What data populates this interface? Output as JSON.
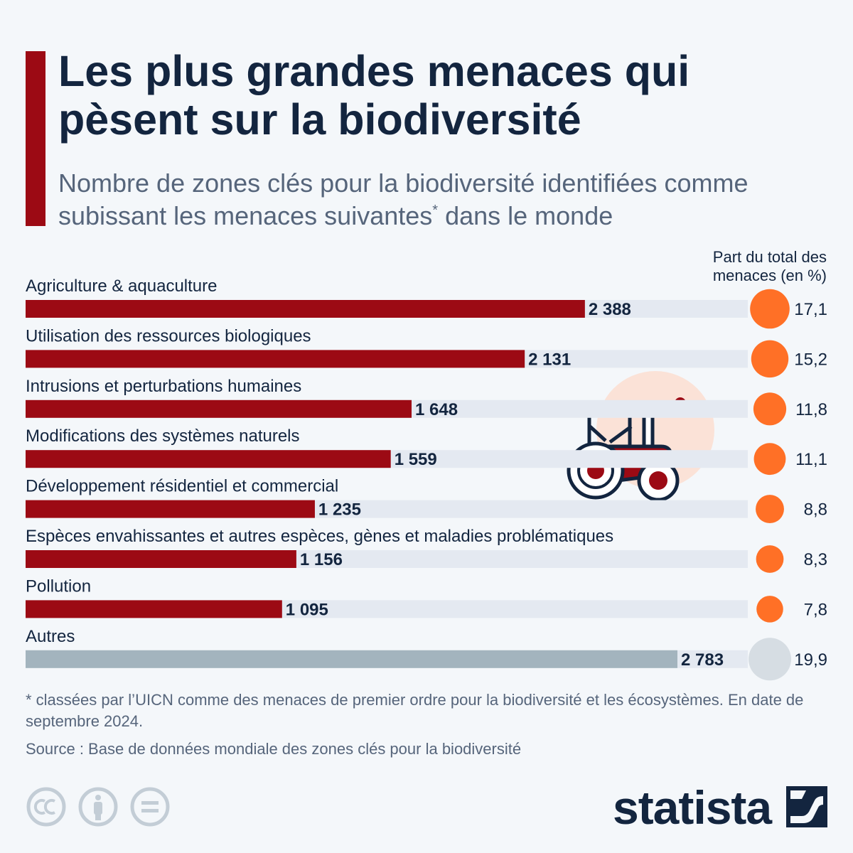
{
  "title": "Les plus grandes menaces qui pèsent sur la biodiversité",
  "subtitle_main": "Nombre de zones clés pour la biodiversité identifiées comme subissant les menaces suivantes",
  "subtitle_mark": "*",
  "subtitle_end": " dans le monde",
  "share_header": "Part du total des menaces (en %)",
  "footnote": "* classées par l’UICN comme des menaces de premier ordre pour la biodiversité et les écosystèmes. En date de septembre 2024.",
  "source": "Source : Base de données mondiale des zones clés pour la biodiversité",
  "brand": "statista",
  "icons": [
    "cc-license-icon",
    "attribution-icon",
    "no-derivatives-icon",
    "statista-logo-icon",
    "tractor-icon"
  ],
  "colors": {
    "bar": "#9c0a14",
    "bar_other": "#a3b4be",
    "track": "#e4e9f1",
    "bubble": "#ff7026",
    "bubble_other": "#d6dde3",
    "text_dark": "#13253f"
  },
  "chart_data": {
    "type": "bar",
    "orientation": "horizontal",
    "categories": [
      "Agriculture & aquaculture",
      "Utilisation des ressources biologiques",
      "Intrusions et perturbations humaines",
      "Modifications des systèmes naturels",
      "Développement résidentiel et commercial",
      "Espèces envahissantes et autres espèces, gènes et maladies problématiques",
      "Pollution",
      "Autres"
    ],
    "values": [
      2388,
      2131,
      1648,
      1559,
      1235,
      1156,
      1095,
      2783
    ],
    "value_labels": [
      "2 388",
      "2 131",
      "1 648",
      "1 559",
      "1 235",
      "1 156",
      "1 095",
      "2 783"
    ],
    "shares": [
      17.1,
      15.2,
      11.8,
      11.1,
      8.8,
      8.3,
      7.8,
      19.9
    ],
    "share_labels": [
      "17,1",
      "15,2",
      "11,8",
      "11,1",
      "8,8",
      "8,3",
      "7,8",
      "19,9"
    ],
    "xlim": [
      0,
      3000
    ],
    "legend": "none",
    "grid": false
  }
}
